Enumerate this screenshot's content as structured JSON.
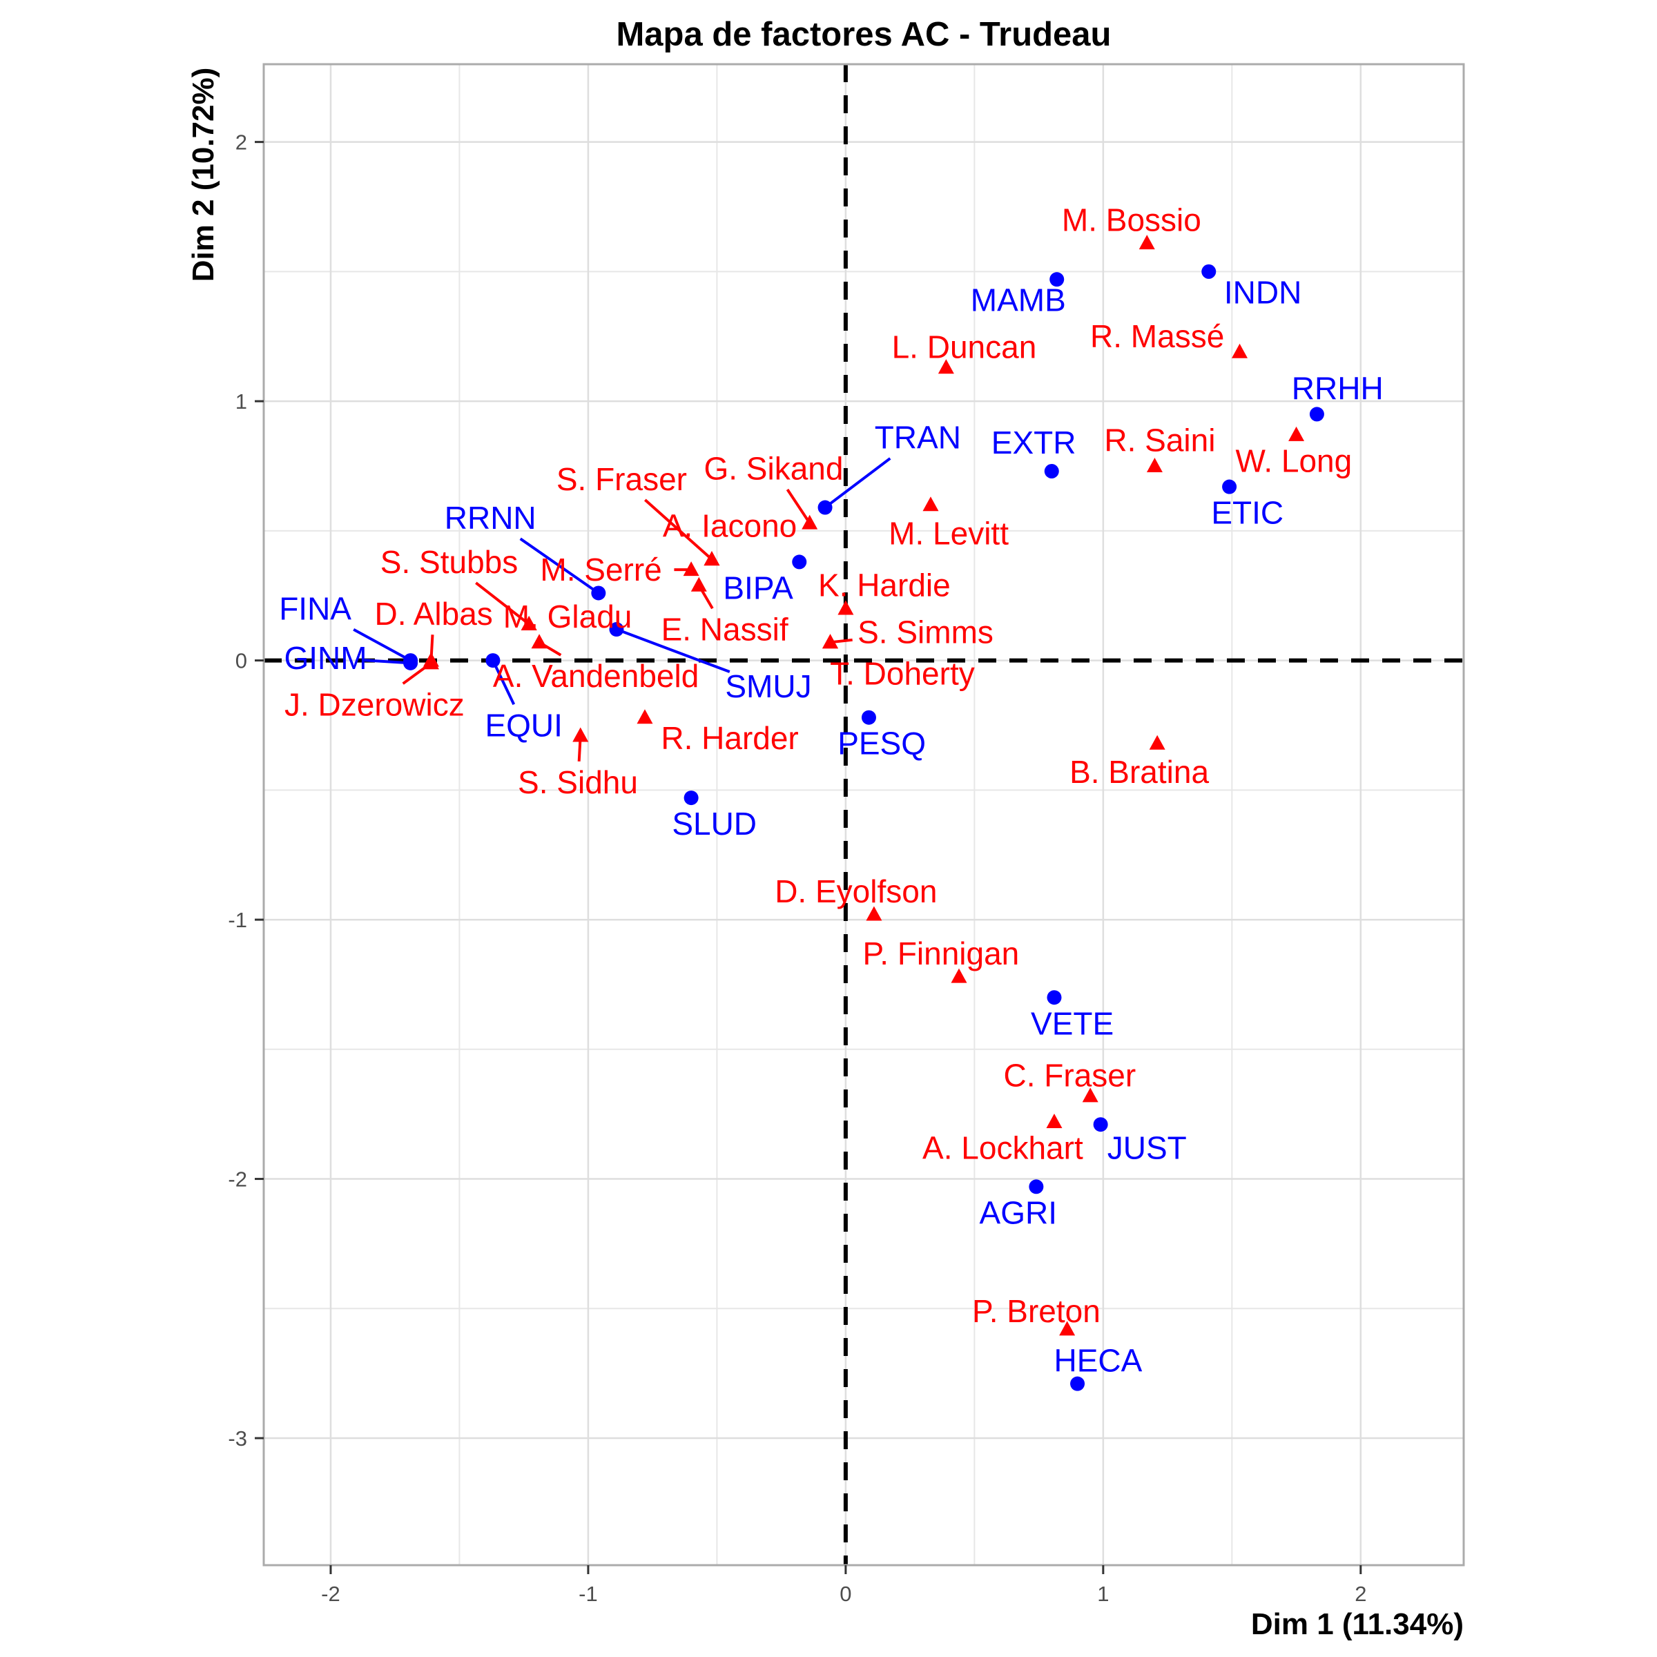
{
  "title": "Mapa de factores AC - Trudeau",
  "axes": {
    "x": {
      "label": "Dim 1 (11.34%)",
      "tick_labels": [
        "-2",
        "-1",
        "0",
        "1",
        "2"
      ],
      "tick_values": [
        -2,
        -1,
        0,
        1,
        2
      ],
      "minor_values": [
        -1.5,
        -0.5,
        0.5,
        1.5
      ]
    },
    "y": {
      "label": "Dim 2 (10.72%)",
      "tick_labels": [
        "2",
        "1",
        "0",
        "-1",
        "-2",
        "-3"
      ],
      "tick_values": [
        2,
        1,
        0,
        -1,
        -2,
        -3
      ],
      "minor_values": [
        1.5,
        0.5,
        -0.5,
        -1.5,
        -2.5
      ]
    }
  },
  "colors": {
    "ministries": "#0000FF",
    "deputies": "#FF0000",
    "grid_major": "#DEDEDE",
    "grid_minor": "#E7E7E7",
    "panel_border": "#ABABAB",
    "reference_line": "#000000",
    "tick_text": "#4D4D4D",
    "tick_mark": "#333333",
    "background": "#FFFFFF"
  },
  "chart_data": {
    "type": "scatter",
    "title": "Mapa de factores AC - Trudeau",
    "xlabel": "Dim 1 (11.34%)",
    "ylabel": "Dim 2 (10.72%)",
    "xlim": [
      -2.26,
      2.4
    ],
    "ylim": [
      -3.49,
      2.3
    ],
    "grid": true,
    "legend": "none",
    "reference_lines": {
      "vline_x": 0,
      "hline_y": 0,
      "style": "dashed"
    },
    "series": [
      {
        "name": "ministries",
        "marker": "circle",
        "color": "#0000FF",
        "points": [
          {
            "label": "MAMB",
            "x": 0.82,
            "y": 1.47,
            "lx": 0.67,
            "ly": 1.39,
            "seg": false
          },
          {
            "label": "INDN",
            "x": 1.41,
            "y": 1.5,
            "lx": 1.62,
            "ly": 1.42,
            "seg": false
          },
          {
            "label": "RRHH",
            "x": 1.83,
            "y": 0.95,
            "lx": 1.91,
            "ly": 1.05,
            "seg": false
          },
          {
            "label": "TRAN",
            "x": -0.08,
            "y": 0.59,
            "lx": 0.28,
            "ly": 0.86,
            "seg": true
          },
          {
            "label": "EXTR",
            "x": 0.8,
            "y": 0.73,
            "lx": 0.73,
            "ly": 0.84,
            "seg": false
          },
          {
            "label": "ETIC",
            "x": 1.49,
            "y": 0.67,
            "lx": 1.56,
            "ly": 0.57,
            "seg": false
          },
          {
            "label": "RRNN",
            "x": -0.96,
            "y": 0.26,
            "lx": -1.38,
            "ly": 0.55,
            "seg": true
          },
          {
            "label": "BIPA",
            "x": -0.18,
            "y": 0.38,
            "lx": -0.34,
            "ly": 0.28,
            "seg": false
          },
          {
            "label": "SMUJ",
            "x": -0.89,
            "y": 0.12,
            "lx": -0.3,
            "ly": -0.1,
            "seg": true
          },
          {
            "label": "FINA",
            "x": -1.69,
            "y": 0.0,
            "lx": -2.06,
            "ly": 0.2,
            "seg": true
          },
          {
            "label": "GINM",
            "x": -1.69,
            "y": -0.01,
            "lx": -2.02,
            "ly": 0.01,
            "seg": true
          },
          {
            "label": "EQUI",
            "x": -1.37,
            "y": 0.0,
            "lx": -1.25,
            "ly": -0.25,
            "seg": true
          },
          {
            "label": "PESQ",
            "x": 0.09,
            "y": -0.22,
            "lx": 0.14,
            "ly": -0.32,
            "seg": false
          },
          {
            "label": "SLUD",
            "x": -0.6,
            "y": -0.53,
            "lx": -0.51,
            "ly": -0.63,
            "seg": false
          },
          {
            "label": "VETE",
            "x": 0.81,
            "y": -1.3,
            "lx": 0.88,
            "ly": -1.4,
            "seg": false
          },
          {
            "label": "JUST",
            "x": 0.99,
            "y": -1.79,
            "lx": 1.17,
            "ly": -1.88,
            "seg": false
          },
          {
            "label": "AGRI",
            "x": 0.74,
            "y": -2.03,
            "lx": 0.67,
            "ly": -2.13,
            "seg": false
          },
          {
            "label": "HECA",
            "x": 0.9,
            "y": -2.79,
            "lx": 0.98,
            "ly": -2.7,
            "seg": false
          }
        ]
      },
      {
        "name": "deputies",
        "marker": "triangle",
        "color": "#FF0000",
        "points": [
          {
            "label": "M. Bossio",
            "x": 1.17,
            "y": 1.61,
            "lx": 1.11,
            "ly": 1.7,
            "seg": false
          },
          {
            "label": "R. Massé",
            "x": 1.53,
            "y": 1.19,
            "lx": 1.21,
            "ly": 1.25,
            "seg": false
          },
          {
            "label": "L. Duncan",
            "x": 0.39,
            "y": 1.13,
            "lx": 0.46,
            "ly": 1.21,
            "seg": false
          },
          {
            "label": "R. Saini",
            "x": 1.2,
            "y": 0.75,
            "lx": 1.22,
            "ly": 0.85,
            "seg": false
          },
          {
            "label": "W. Long",
            "x": 1.75,
            "y": 0.87,
            "lx": 1.74,
            "ly": 0.77,
            "seg": false
          },
          {
            "label": "G. Sikand",
            "x": -0.14,
            "y": 0.53,
            "lx": -0.28,
            "ly": 0.74,
            "seg": true
          },
          {
            "label": "S. Fraser",
            "x": -0.52,
            "y": 0.39,
            "lx": -0.87,
            "ly": 0.7,
            "seg": true
          },
          {
            "label": "A. Iacono",
            "x": -0.52,
            "y": 0.39,
            "lx": -0.45,
            "ly": 0.52,
            "seg": false
          },
          {
            "label": "M. Levitt",
            "x": 0.33,
            "y": 0.6,
            "lx": 0.4,
            "ly": 0.49,
            "seg": false
          },
          {
            "label": "M. Serré",
            "x": -0.6,
            "y": 0.35,
            "lx": -0.95,
            "ly": 0.35,
            "seg": true
          },
          {
            "label": "E. Nassif",
            "x": -0.57,
            "y": 0.29,
            "lx": -0.47,
            "ly": 0.12,
            "seg": true
          },
          {
            "label": "K. Hardie",
            "x": 0.0,
            "y": 0.2,
            "lx": 0.15,
            "ly": 0.29,
            "seg": false
          },
          {
            "label": "S. Simms",
            "x": -0.06,
            "y": 0.07,
            "lx": 0.31,
            "ly": 0.11,
            "seg": true
          },
          {
            "label": "T. Doherty",
            "x": -0.06,
            "y": 0.07,
            "lx": 0.22,
            "ly": -0.05,
            "seg": false
          },
          {
            "label": "S. Stubbs",
            "x": -1.23,
            "y": 0.14,
            "lx": -1.54,
            "ly": 0.38,
            "seg": true
          },
          {
            "label": "M. Gladu",
            "x": -1.23,
            "y": 0.14,
            "lx": -1.08,
            "ly": 0.17,
            "seg": false
          },
          {
            "label": "D. Albas",
            "x": -1.61,
            "y": 0.0,
            "lx": -1.6,
            "ly": 0.18,
            "seg": true
          },
          {
            "label": "J. Dzerowicz",
            "x": -1.61,
            "y": -0.01,
            "lx": -1.83,
            "ly": -0.17,
            "seg": true
          },
          {
            "label": "A. Vandenbeld",
            "x": -1.19,
            "y": 0.07,
            "lx": -0.97,
            "ly": -0.06,
            "seg": true
          },
          {
            "label": "R. Harder",
            "x": -0.78,
            "y": -0.22,
            "lx": -0.45,
            "ly": -0.3,
            "seg": false
          },
          {
            "label": "S. Sidhu",
            "x": -1.03,
            "y": -0.29,
            "lx": -1.04,
            "ly": -0.47,
            "seg": true
          },
          {
            "label": "B. Bratina",
            "x": 1.21,
            "y": -0.32,
            "lx": 1.14,
            "ly": -0.43,
            "seg": false
          },
          {
            "label": "D. Eyolfson",
            "x": 0.11,
            "y": -0.98,
            "lx": 0.04,
            "ly": -0.89,
            "seg": false
          },
          {
            "label": "P. Finnigan",
            "x": 0.44,
            "y": -1.22,
            "lx": 0.37,
            "ly": -1.13,
            "seg": false
          },
          {
            "label": "C. Fraser",
            "x": 0.95,
            "y": -1.68,
            "lx": 0.87,
            "ly": -1.6,
            "seg": false
          },
          {
            "label": "A. Lockhart",
            "x": 0.81,
            "y": -1.78,
            "lx": 0.61,
            "ly": -1.88,
            "seg": false
          },
          {
            "label": "P. Breton",
            "x": 0.86,
            "y": -2.58,
            "lx": 0.74,
            "ly": -2.51,
            "seg": false
          }
        ]
      }
    ]
  }
}
